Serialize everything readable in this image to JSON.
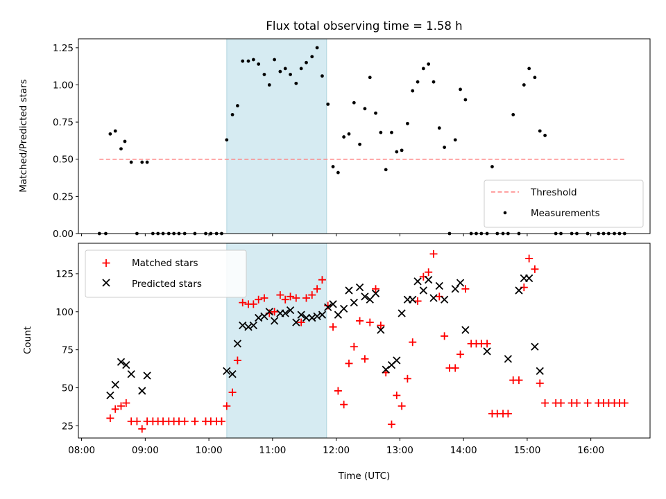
{
  "chart_data": [
    {
      "type": "scatter",
      "title": "Flux total observing time = 1.58 h",
      "xlabel": "",
      "ylabel": "Matched/Predicted stars",
      "xlim": [
        7.95,
        16.93
      ],
      "ylim": [
        0,
        1.31
      ],
      "yticks": [
        0.0,
        0.25,
        0.5,
        0.75,
        1.0,
        1.25
      ],
      "ytick_labels": [
        "0.00",
        "0.25",
        "0.50",
        "0.75",
        "1.00",
        "1.25"
      ],
      "highlight_span_hours": [
        10.28,
        11.85
      ],
      "threshold": {
        "name": "Threshold",
        "value": 0.5,
        "x_range": [
          8.28,
          16.53
        ],
        "color": "#ff8080"
      },
      "series": [
        {
          "name": "Measurements",
          "color": "#000000",
          "marker": "dot",
          "x": [
            8.28,
            8.38,
            8.45,
            8.53,
            8.62,
            8.68,
            8.78,
            8.87,
            8.95,
            9.03,
            9.12,
            9.2,
            9.28,
            9.37,
            9.45,
            9.53,
            9.62,
            9.78,
            9.95,
            10.03,
            10.12,
            10.2,
            10.28,
            10.37,
            10.45,
            10.53,
            10.62,
            10.7,
            10.78,
            10.87,
            10.95,
            11.03,
            11.12,
            11.2,
            11.28,
            11.37,
            11.45,
            11.53,
            11.62,
            11.7,
            11.78,
            11.87,
            11.95,
            12.03,
            12.12,
            12.2,
            12.28,
            12.37,
            12.45,
            12.53,
            12.62,
            12.7,
            12.78,
            12.87,
            12.95,
            13.03,
            13.12,
            13.2,
            13.28,
            13.37,
            13.45,
            13.53,
            13.62,
            13.7,
            13.78,
            13.87,
            13.95,
            14.03,
            14.12,
            14.2,
            14.28,
            14.37,
            14.45,
            14.53,
            14.62,
            14.7,
            14.78,
            14.87,
            14.95,
            15.03,
            15.12,
            15.2,
            15.28,
            15.45,
            15.53,
            15.7,
            15.78,
            15.95,
            16.12,
            16.2,
            16.28,
            16.37,
            16.45,
            16.53
          ],
          "y": [
            0,
            0,
            0.67,
            0.69,
            0.57,
            0.62,
            0.48,
            0,
            0.48,
            0.48,
            0,
            0,
            0,
            0,
            0,
            0,
            0,
            0,
            0,
            0,
            0,
            0,
            0.63,
            0.8,
            0.86,
            1.16,
            1.16,
            1.17,
            1.14,
            1.07,
            1.0,
            1.17,
            1.09,
            1.11,
            1.07,
            1.01,
            1.11,
            1.15,
            1.19,
            1.25,
            1.06,
            0.87,
            0.45,
            0.41,
            0.65,
            0.67,
            0.88,
            0.6,
            0.84,
            1.05,
            0.81,
            0.68,
            0.43,
            0.68,
            0.55,
            0.56,
            0.74,
            0.96,
            1.02,
            1.11,
            1.14,
            1.02,
            0.71,
            0.58,
            0,
            0.63,
            0.97,
            0.9,
            0,
            0,
            0,
            0,
            0.45,
            0,
            0,
            0,
            0.8,
            0,
            1.0,
            1.11,
            1.05,
            0.69,
            0.66,
            0,
            0,
            0,
            0,
            0,
            0,
            0,
            0,
            0,
            0,
            0
          ]
        }
      ],
      "legend": {
        "entries": [
          "Threshold",
          "Measurements"
        ],
        "placement": "lower-right"
      }
    },
    {
      "type": "scatter",
      "title": "",
      "xlabel": "Time (UTC)",
      "ylabel": "Count",
      "xlim": [
        7.95,
        16.93
      ],
      "ylim": [
        17,
        145
      ],
      "yticks": [
        25,
        50,
        75,
        100,
        125
      ],
      "ytick_labels": [
        "25",
        "50",
        "75",
        "100",
        "125"
      ],
      "xticks": [
        8,
        9,
        10,
        11,
        12,
        13,
        14,
        15,
        16
      ],
      "xtick_labels": [
        "08:00",
        "09:00",
        "10:00",
        "11:00",
        "12:00",
        "13:00",
        "14:00",
        "15:00",
        "16:00"
      ],
      "highlight_span_hours": [
        10.28,
        11.85
      ],
      "series": [
        {
          "name": "Matched stars",
          "color": "#ff0000",
          "marker": "plus",
          "x": [
            8.45,
            8.53,
            8.62,
            8.7,
            8.78,
            8.87,
            8.95,
            9.03,
            9.12,
            9.2,
            9.28,
            9.37,
            9.45,
            9.53,
            9.62,
            9.78,
            9.95,
            10.03,
            10.12,
            10.2,
            10.28,
            10.37,
            10.45,
            10.53,
            10.62,
            10.7,
            10.78,
            10.87,
            10.95,
            11.03,
            11.12,
            11.2,
            11.28,
            11.37,
            11.45,
            11.53,
            11.62,
            11.7,
            11.78,
            11.87,
            11.95,
            12.03,
            12.12,
            12.2,
            12.28,
            12.37,
            12.45,
            12.53,
            12.62,
            12.7,
            12.78,
            12.87,
            12.95,
            13.03,
            13.12,
            13.2,
            13.28,
            13.37,
            13.45,
            13.53,
            13.62,
            13.7,
            13.78,
            13.87,
            13.95,
            14.03,
            14.12,
            14.2,
            14.28,
            14.37,
            14.45,
            14.53,
            14.62,
            14.7,
            14.78,
            14.87,
            14.95,
            15.03,
            15.12,
            15.2,
            15.28,
            15.45,
            15.53,
            15.7,
            15.78,
            15.95,
            16.12,
            16.2,
            16.28,
            16.37,
            16.45,
            16.53
          ],
          "y": [
            30,
            36,
            38,
            40,
            28,
            28,
            23,
            28,
            28,
            28,
            28,
            28,
            28,
            28,
            28,
            28,
            28,
            28,
            28,
            28,
            38,
            47,
            68,
            106,
            105,
            105,
            108,
            109,
            99,
            100,
            111,
            108,
            110,
            109,
            93,
            109,
            111,
            115,
            121,
            104,
            90,
            48,
            39,
            66,
            77,
            94,
            69,
            93,
            115,
            91,
            60,
            26,
            45,
            38,
            56,
            80,
            107,
            123,
            126,
            138,
            110,
            84,
            63,
            63,
            72,
            115,
            79,
            79,
            79,
            79,
            33,
            33,
            33,
            33,
            55,
            55,
            116,
            135,
            128,
            53,
            40,
            40,
            40,
            40,
            40,
            40,
            40,
            40,
            40,
            40,
            40,
            40
          ]
        },
        {
          "name": "Predicted stars",
          "color": "#000000",
          "marker": "x",
          "x": [
            8.45,
            8.53,
            8.62,
            8.7,
            8.78,
            8.95,
            9.03,
            10.28,
            10.37,
            10.45,
            10.53,
            10.62,
            10.7,
            10.78,
            10.87,
            10.95,
            11.03,
            11.12,
            11.2,
            11.28,
            11.37,
            11.45,
            11.53,
            11.62,
            11.7,
            11.78,
            11.87,
            11.95,
            12.03,
            12.12,
            12.2,
            12.28,
            12.37,
            12.45,
            12.53,
            12.62,
            12.7,
            12.78,
            12.87,
            12.95,
            13.03,
            13.12,
            13.2,
            13.28,
            13.37,
            13.45,
            13.53,
            13.62,
            13.7,
            13.87,
            13.95,
            14.03,
            14.37,
            14.7,
            14.87,
            14.95,
            15.03,
            15.12,
            15.2
          ],
          "y": [
            45,
            52,
            67,
            65,
            59,
            48,
            58,
            61,
            59,
            79,
            91,
            90,
            91,
            96,
            97,
            100,
            94,
            99,
            99,
            101,
            93,
            98,
            96,
            96,
            97,
            98,
            103,
            105,
            98,
            102,
            114,
            106,
            116,
            110,
            108,
            112,
            88,
            62,
            65,
            68,
            99,
            108,
            108,
            120,
            114,
            121,
            109,
            117,
            108,
            115,
            119,
            88,
            74,
            69,
            114,
            122,
            122,
            77,
            61
          ]
        }
      ],
      "legend": {
        "entries": [
          "Matched stars",
          "Predicted stars"
        ],
        "placement": "upper-left"
      }
    }
  ]
}
